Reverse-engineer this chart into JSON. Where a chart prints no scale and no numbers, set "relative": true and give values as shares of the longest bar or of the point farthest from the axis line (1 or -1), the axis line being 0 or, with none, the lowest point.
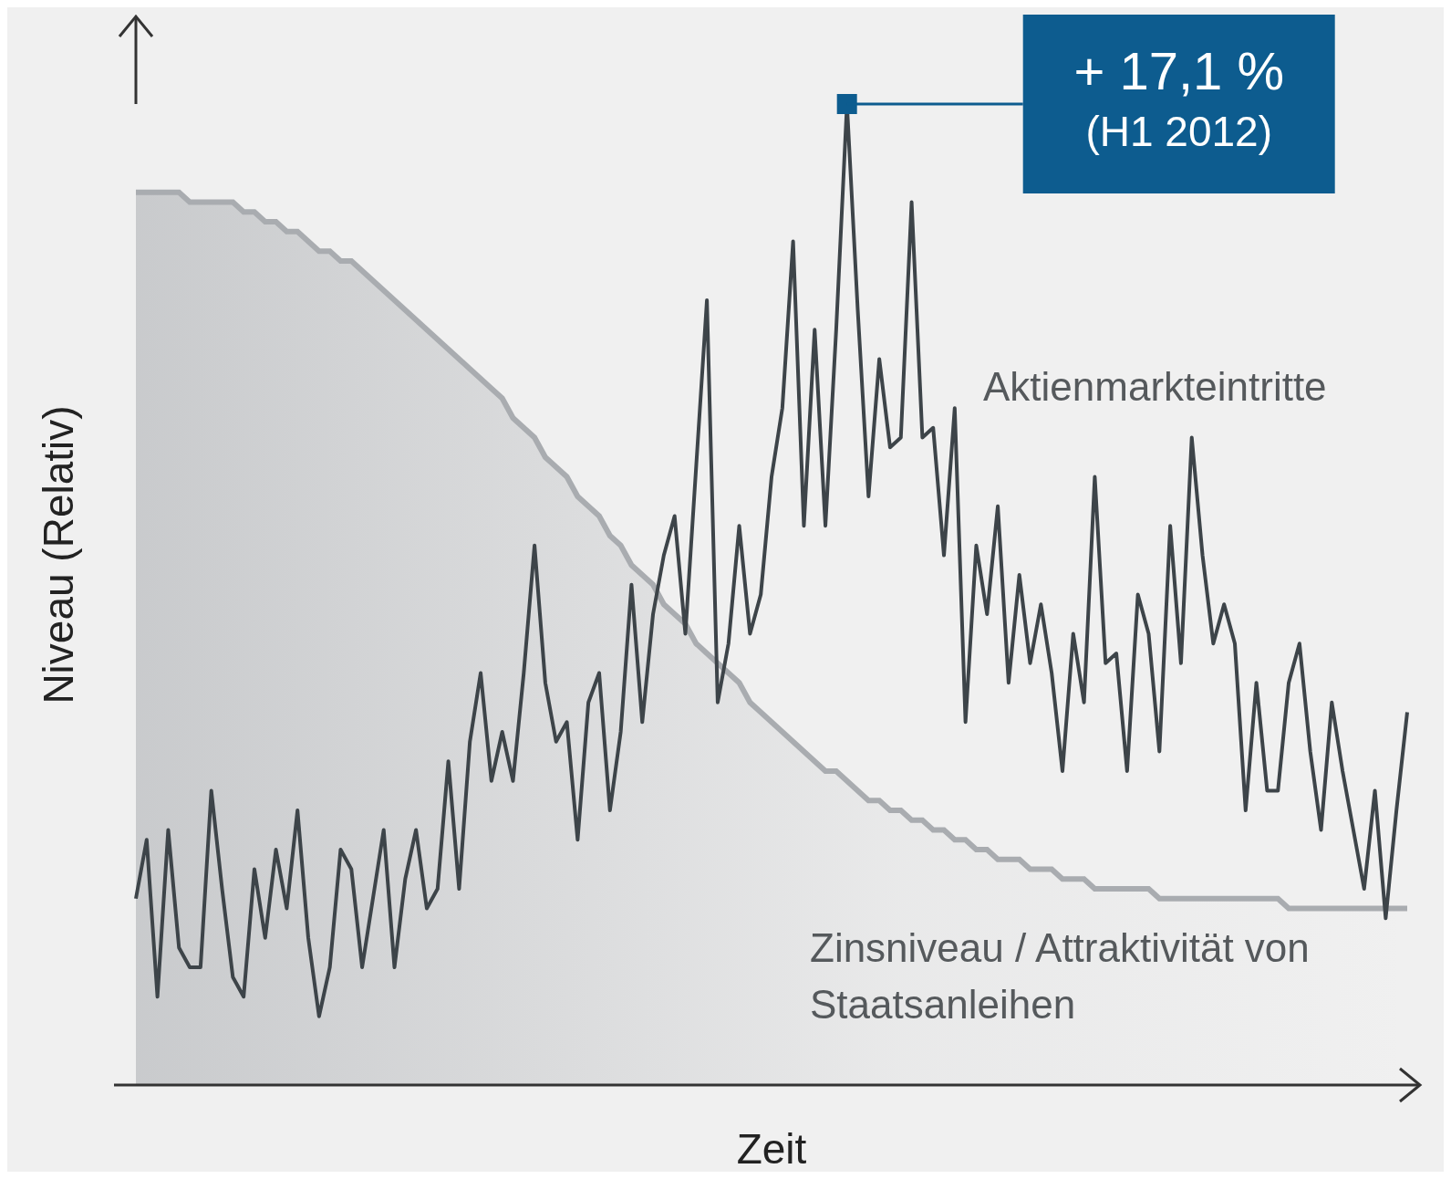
{
  "chart_data": {
    "type": "line",
    "relative": true,
    "xlabel": "Zeit",
    "ylabel": "Niveau (Relativ)",
    "categories": [
      null,
      null,
      null,
      null,
      null,
      null,
      null,
      null,
      null,
      null,
      null,
      null,
      null,
      null,
      null,
      null,
      null,
      null,
      null,
      null,
      null,
      null,
      null,
      null,
      null,
      null,
      null,
      null,
      null,
      null,
      null,
      null,
      null,
      null,
      null,
      null,
      null,
      null,
      null,
      null,
      null,
      null,
      null,
      null,
      null,
      null,
      null,
      null,
      null,
      null,
      null,
      null,
      null,
      null,
      null,
      null,
      null,
      null,
      null,
      null,
      null,
      null,
      null,
      null,
      null,
      null,
      null,
      null,
      null,
      null,
      null,
      null,
      null,
      null,
      null,
      null,
      null,
      null,
      null,
      null,
      null,
      null,
      null,
      null,
      null,
      null,
      null,
      null,
      null,
      null,
      null,
      null,
      null,
      null,
      null,
      null,
      null,
      null,
      null,
      null,
      null,
      null,
      null,
      null,
      null,
      null,
      null,
      null,
      null,
      null,
      null,
      null,
      null,
      null,
      null,
      null,
      null,
      null,
      null
    ],
    "annotations": [
      "+ 17,1 %\n(H1 2012)"
    ],
    "series": [
      {
        "name": "Zinsniveau / Attraktivität von Staatsanleihen",
        "type": "area",
        "color": "#a9acb0",
        "values": [
          0.91,
          0.91,
          0.91,
          0.91,
          0.91,
          0.9,
          0.9,
          0.9,
          0.9,
          0.9,
          0.89,
          0.89,
          0.88,
          0.88,
          0.87,
          0.87,
          0.86,
          0.85,
          0.85,
          0.84,
          0.84,
          0.83,
          0.82,
          0.81,
          0.8,
          0.79,
          0.78,
          0.77,
          0.76,
          0.75,
          0.74,
          0.73,
          0.72,
          0.71,
          0.7,
          0.68,
          0.67,
          0.66,
          0.64,
          0.63,
          0.62,
          0.6,
          0.59,
          0.58,
          0.56,
          0.55,
          0.53,
          0.52,
          0.51,
          0.49,
          0.48,
          0.47,
          0.45,
          0.44,
          0.43,
          0.42,
          0.41,
          0.39,
          0.38,
          0.37,
          0.36,
          0.35,
          0.34,
          0.33,
          0.32,
          0.32,
          0.31,
          0.3,
          0.29,
          0.29,
          0.28,
          0.28,
          0.27,
          0.27,
          0.26,
          0.26,
          0.25,
          0.25,
          0.24,
          0.24,
          0.23,
          0.23,
          0.23,
          0.22,
          0.22,
          0.22,
          0.21,
          0.21,
          0.21,
          0.2,
          0.2,
          0.2,
          0.2,
          0.2,
          0.2,
          0.19,
          0.19,
          0.19,
          0.19,
          0.19,
          0.19,
          0.19,
          0.19,
          0.19,
          0.19,
          0.19,
          0.19,
          0.18,
          0.18,
          0.18,
          0.18,
          0.18,
          0.18,
          0.18,
          0.18,
          0.18,
          0.18,
          0.18,
          0.18
        ]
      },
      {
        "name": "Aktienmarkteintritte",
        "color": "#3d4449",
        "values": [
          0.19,
          0.25,
          0.09,
          0.26,
          0.14,
          0.12,
          0.12,
          0.3,
          0.2,
          0.11,
          0.09,
          0.22,
          0.15,
          0.24,
          0.18,
          0.28,
          0.15,
          0.07,
          0.12,
          0.24,
          0.22,
          0.12,
          0.19,
          0.26,
          0.12,
          0.21,
          0.26,
          0.18,
          0.2,
          0.33,
          0.2,
          0.35,
          0.42,
          0.31,
          0.36,
          0.31,
          0.42,
          0.55,
          0.41,
          0.35,
          0.37,
          0.25,
          0.39,
          0.42,
          0.28,
          0.36,
          0.51,
          0.37,
          0.48,
          0.54,
          0.58,
          0.46,
          0.63,
          0.8,
          0.39,
          0.45,
          0.57,
          0.46,
          0.5,
          0.62,
          0.69,
          0.86,
          0.57,
          0.77,
          0.57,
          0.77,
          1.0,
          0.79,
          0.6,
          0.74,
          0.65,
          0.66,
          0.9,
          0.66,
          0.67,
          0.54,
          0.69,
          0.37,
          0.55,
          0.48,
          0.59,
          0.41,
          0.52,
          0.43,
          0.49,
          0.42,
          0.32,
          0.46,
          0.39,
          0.62,
          0.43,
          0.44,
          0.32,
          0.5,
          0.46,
          0.34,
          0.57,
          0.43,
          0.66,
          0.54,
          0.45,
          0.49,
          0.45,
          0.28,
          0.41,
          0.3,
          0.3,
          0.41,
          0.45,
          0.34,
          0.26,
          0.39,
          0.32,
          0.26,
          0.2,
          0.3,
          0.17,
          0.28,
          0.38
        ]
      }
    ]
  }
}
